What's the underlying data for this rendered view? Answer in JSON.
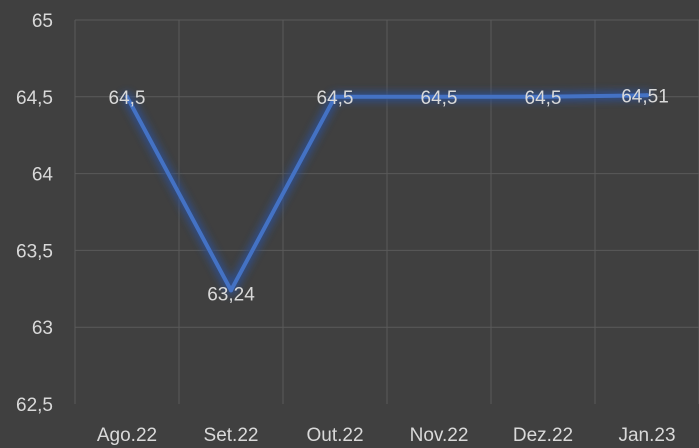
{
  "chart_data": {
    "type": "line",
    "title": "",
    "xlabel": "",
    "ylabel": "",
    "categories": [
      "Ago.22",
      "Set.22",
      "Out.22",
      "Nov.22",
      "Dez.22",
      "Jan.23"
    ],
    "series": [
      {
        "values": [
          64.5,
          63.24,
          64.5,
          64.5,
          64.5,
          64.51
        ]
      }
    ],
    "data_labels": [
      "64,5",
      "63,24",
      "64,5",
      "64,5",
      "64,5",
      "64,51"
    ],
    "y_ticks": [
      65,
      64.5,
      64,
      63.5,
      63,
      62.5
    ],
    "y_tick_labels": [
      "65",
      "64,5",
      "64",
      "63,5",
      "63",
      "62,5"
    ],
    "ylim": [
      62.5,
      65
    ],
    "grid": true,
    "legend": "none",
    "colors": {
      "background": "#404040",
      "line": "#4472c4",
      "glow": "#2f4f8f",
      "grid": "#5a5a5a",
      "text": "#d9d9d9"
    }
  }
}
